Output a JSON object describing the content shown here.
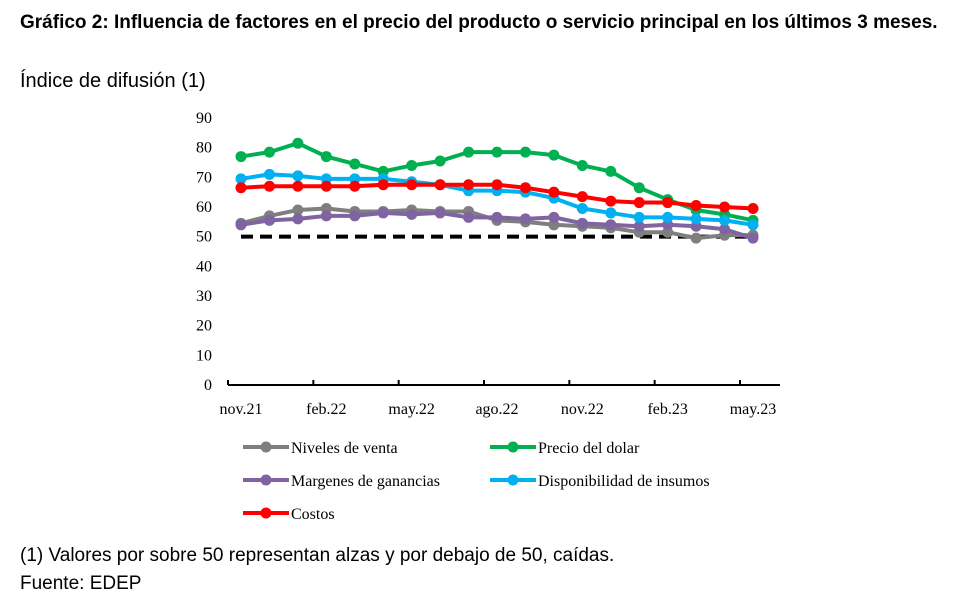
{
  "title": "Gráfico 2: Influencia de factores en el precio del producto o servicio principal en los últimos 3 meses.",
  "subtitle": "Índice de difusión (1)",
  "footnote": "(1) Valores por sobre 50 representan alzas y por debajo de 50, caídas.",
  "source": "Fuente: EDEP",
  "chart_data": {
    "type": "line",
    "title": "",
    "xlabel": "",
    "ylabel": "",
    "ylim": [
      0,
      90
    ],
    "yticks": [
      0,
      10,
      20,
      30,
      40,
      50,
      60,
      70,
      80,
      90
    ],
    "grid": false,
    "legend_position": "bottom",
    "x": [
      "nov.21",
      "dic.21",
      "ene.22",
      "feb.22",
      "mar.22",
      "abr.22",
      "may.22",
      "jun.22",
      "jul.22",
      "ago.22",
      "sep.22",
      "oct.22",
      "nov.22",
      "dic.22",
      "ene.23",
      "feb.23",
      "mar.23",
      "abr.23",
      "may.23"
    ],
    "x_tick_labels": [
      "nov.21",
      "feb.22",
      "may.22",
      "ago.22",
      "nov.22",
      "feb.23",
      "may.23"
    ],
    "reference_line": {
      "y": 50,
      "style": "dashed",
      "color": "#000000"
    },
    "series": [
      {
        "name": "Niveles de venta",
        "color": "#7f7f7f",
        "values": [
          54.5,
          57,
          59,
          59.5,
          58.5,
          58.5,
          59,
          58.5,
          58.5,
          55.5,
          55,
          54,
          53.5,
          53,
          51.5,
          51.5,
          49.5,
          50.5,
          50.5
        ]
      },
      {
        "name": "Precio del dolar",
        "color": "#00b050",
        "values": [
          77,
          78.5,
          81.5,
          77,
          74.5,
          72,
          74,
          75.5,
          78.5,
          78.5,
          78.5,
          77.5,
          74,
          72,
          66.5,
          62.5,
          59,
          57.5,
          55.5
        ]
      },
      {
        "name": "Margenes de ganancias",
        "color": "#8064a2",
        "values": [
          54,
          55.5,
          56,
          57,
          57,
          58,
          57.5,
          58,
          56.5,
          56.5,
          56,
          56.5,
          54.5,
          54,
          53.5,
          54,
          53.5,
          52.5,
          49.5
        ]
      },
      {
        "name": "Disponibilidad de insumos",
        "color": "#00b0f0",
        "values": [
          69.5,
          71,
          70.5,
          69.5,
          69.5,
          69.5,
          68.5,
          67.5,
          65.5,
          65.5,
          65,
          63,
          59.5,
          58,
          56.5,
          56.5,
          56,
          55.5,
          54
        ]
      },
      {
        "name": "Costos",
        "color": "#ff0000",
        "values": [
          66.5,
          67,
          67,
          67,
          67,
          67.5,
          67.5,
          67.5,
          67.5,
          67.5,
          66.5,
          65,
          63.5,
          62,
          61.5,
          61.5,
          60.5,
          60,
          59.5
        ]
      }
    ]
  }
}
